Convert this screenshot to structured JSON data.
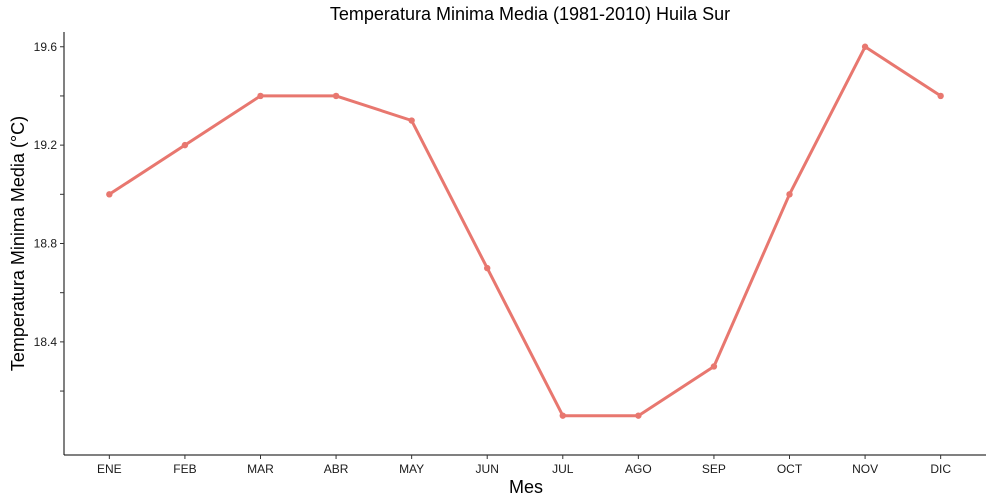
{
  "chart_data": {
    "type": "line",
    "title": "Temperatura Minima Media (1981-2010)  Huila Sur",
    "xlabel": "Mes",
    "ylabel": "Temperatura Minima Media  (°C)",
    "categories": [
      "ENE",
      "FEB",
      "MAR",
      "ABR",
      "MAY",
      "JUN",
      "JUL",
      "AGO",
      "SEP",
      "OCT",
      "NOV",
      "DIC"
    ],
    "values": [
      19.0,
      19.2,
      19.4,
      19.4,
      19.3,
      18.7,
      18.1,
      18.1,
      18.3,
      19.0,
      19.6,
      19.4
    ],
    "ylim": [
      17.94,
      19.66
    ],
    "yticks": [
      18.4,
      18.8,
      19.2,
      19.6
    ],
    "yticks_minor": [
      18.2,
      18.6,
      19.0,
      19.4
    ],
    "grid": false,
    "line_color": "#E8776F"
  }
}
